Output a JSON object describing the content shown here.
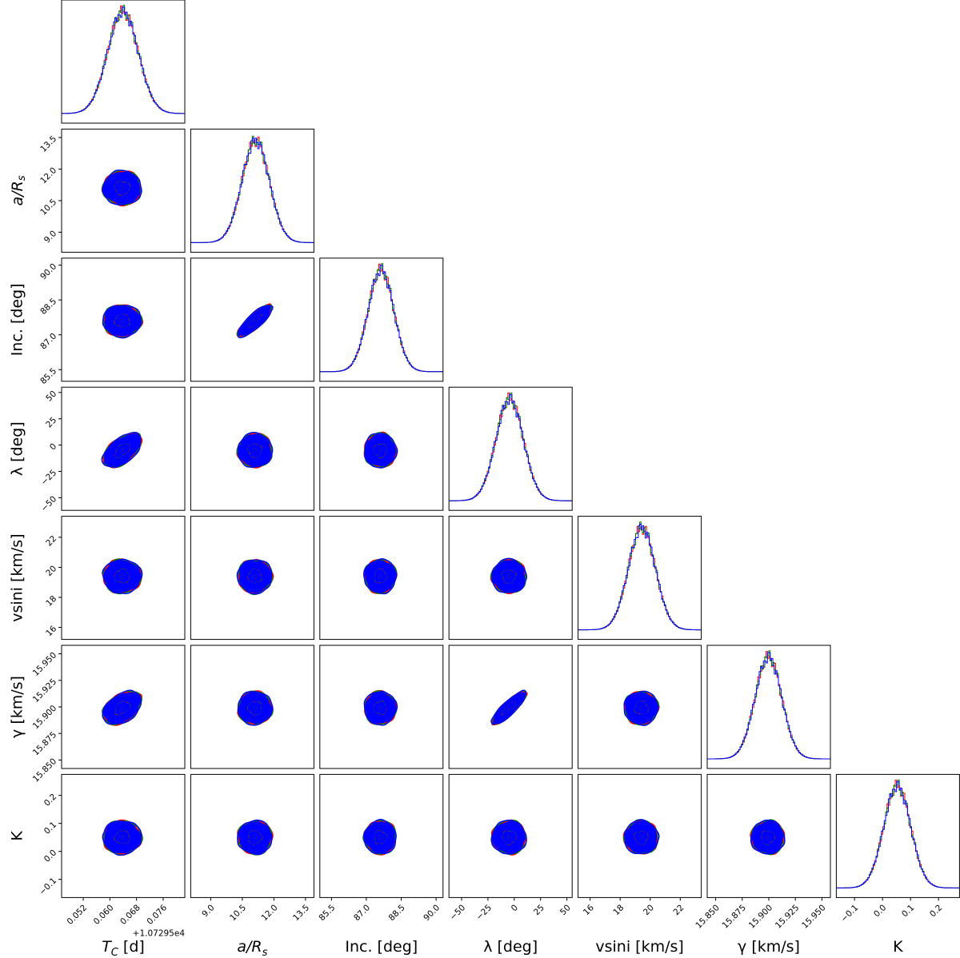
{
  "chart_data": {
    "type": "corner",
    "title": "",
    "parameters": [
      {
        "key": "tc",
        "label": "T_C [d]",
        "label_main": "T",
        "label_sub": "C",
        "label_tail": " [d]",
        "range": [
          0.0455,
          0.0825
        ],
        "ticks": [
          0.052,
          0.06,
          0.068,
          0.076
        ],
        "tick_labels": [
          "0.052",
          "0.060",
          "0.068",
          "0.076"
        ],
        "offset_text": "+1.07295e4",
        "median": 0.0637,
        "sigma": 0.0046
      },
      {
        "key": "a_rs",
        "label": "a/R_s",
        "label_main": "a/R",
        "label_sub": "s",
        "label_tail": "",
        "range": [
          8.05,
          13.9
        ],
        "ticks": [
          9.0,
          10.5,
          12.0,
          13.5
        ],
        "tick_labels": [
          "9.0",
          "10.5",
          "12.0",
          "13.5"
        ],
        "median": 11.1,
        "sigma": 0.65
      },
      {
        "key": "inc",
        "label": "Inc. [deg]",
        "range": [
          85.0,
          90.3
        ],
        "ticks": [
          85.5,
          87.0,
          88.5,
          90.0
        ],
        "tick_labels": [
          "85.5",
          "87.0",
          "88.5",
          "90.0"
        ],
        "median": 87.6,
        "sigma": 0.55
      },
      {
        "key": "lambda",
        "label": "λ [deg]",
        "range": [
          -62,
          55
        ],
        "ticks": [
          -50,
          -25,
          0,
          25,
          50
        ],
        "tick_labels": [
          "−50",
          "−25",
          "0",
          "25",
          "50"
        ],
        "median": -5,
        "sigma": 13
      },
      {
        "key": "vsini",
        "label": "vsini [km/s]",
        "range": [
          15.2,
          23.4
        ],
        "ticks": [
          16,
          18,
          20,
          22
        ],
        "tick_labels": [
          "16",
          "18",
          "20",
          "22"
        ],
        "median": 19.4,
        "sigma": 0.9
      },
      {
        "key": "gamma",
        "label": "γ [km/s]",
        "range": [
          15.842,
          15.958
        ],
        "ticks": [
          15.85,
          15.875,
          15.9,
          15.925,
          15.95
        ],
        "tick_labels": [
          "15.850",
          "15.875",
          "15.900",
          "15.925",
          "15.950"
        ],
        "median": 15.899,
        "sigma": 0.0125
      },
      {
        "key": "k",
        "label": "K",
        "range": [
          -0.165,
          0.275
        ],
        "ticks": [
          -0.1,
          0.0,
          0.1,
          0.2
        ],
        "tick_labels": [
          "−0.1",
          "0.0",
          "0.1",
          "0.2"
        ],
        "median": 0.05,
        "sigma": 0.048
      }
    ],
    "correlations": [
      {
        "row": "a_rs",
        "col": "tc",
        "rho": 0.0
      },
      {
        "row": "inc",
        "col": "tc",
        "rho": 0.0
      },
      {
        "row": "inc",
        "col": "a_rs",
        "rho": 0.82
      },
      {
        "row": "lambda",
        "col": "tc",
        "rho": 0.55
      },
      {
        "row": "lambda",
        "col": "a_rs",
        "rho": 0.0
      },
      {
        "row": "lambda",
        "col": "inc",
        "rho": 0.0
      },
      {
        "row": "vsini",
        "col": "tc",
        "rho": 0.0
      },
      {
        "row": "vsini",
        "col": "a_rs",
        "rho": 0.0
      },
      {
        "row": "vsini",
        "col": "inc",
        "rho": 0.0
      },
      {
        "row": "vsini",
        "col": "lambda",
        "rho": 0.0
      },
      {
        "row": "gamma",
        "col": "tc",
        "rho": 0.4
      },
      {
        "row": "gamma",
        "col": "a_rs",
        "rho": 0.0
      },
      {
        "row": "gamma",
        "col": "inc",
        "rho": 0.0
      },
      {
        "row": "gamma",
        "col": "lambda",
        "rho": 0.85
      },
      {
        "row": "gamma",
        "col": "vsini",
        "rho": 0.0
      },
      {
        "row": "k",
        "col": "tc",
        "rho": 0.0
      },
      {
        "row": "k",
        "col": "a_rs",
        "rho": 0.0
      },
      {
        "row": "k",
        "col": "inc",
        "rho": 0.0
      },
      {
        "row": "k",
        "col": "lambda",
        "rho": 0.0
      },
      {
        "row": "k",
        "col": "vsini",
        "rho": 0.0
      },
      {
        "row": "k",
        "col": "gamma",
        "rho": 0.0
      }
    ],
    "contour_levels_sigma": [
      1,
      2,
      3
    ],
    "series_colors": [
      "#ff0000",
      "#008000",
      "#0000ff"
    ],
    "fill_colors": [
      "#c3c3f5",
      "#8787ee",
      "#0000ff"
    ]
  }
}
